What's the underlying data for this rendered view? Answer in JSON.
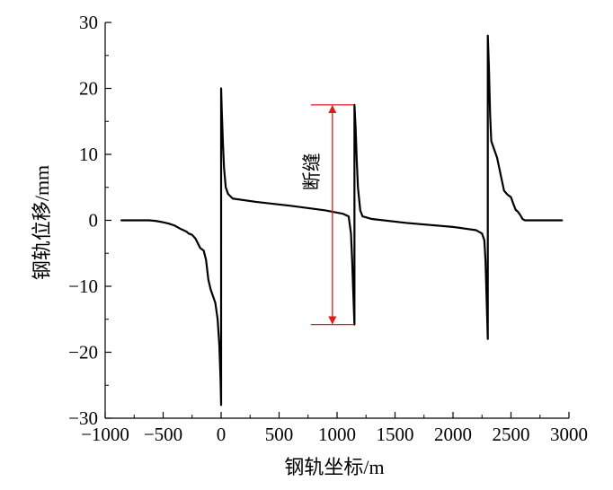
{
  "chart_data": {
    "type": "line",
    "xlabel": "钢轨坐标/m",
    "ylabel": "钢轨位移/mm",
    "xlim": [
      -1000,
      3000
    ],
    "ylim": [
      -30,
      30
    ],
    "x_ticks": [
      -1000,
      -500,
      0,
      500,
      1000,
      1500,
      2000,
      2500,
      3000
    ],
    "x_tick_labels": [
      "−1000",
      "−500",
      "0",
      "500",
      "1000",
      "1500",
      "2000",
      "2500",
      "3000"
    ],
    "y_ticks": [
      -30,
      -20,
      -10,
      0,
      10,
      20,
      30
    ],
    "y_tick_labels": [
      "−30",
      "−20",
      "−10",
      "0",
      "10",
      "20",
      "30"
    ],
    "grid": false,
    "line_color": "#000000",
    "series": [
      {
        "values": [
          [
            -860,
            0
          ],
          [
            -620,
            0
          ],
          [
            -560,
            -0.1
          ],
          [
            -500,
            -0.3
          ],
          [
            -450,
            -0.5
          ],
          [
            -400,
            -0.8
          ],
          [
            -350,
            -1.3
          ],
          [
            -300,
            -1.7
          ],
          [
            -280,
            -2.0
          ],
          [
            -250,
            -2.2
          ],
          [
            -220,
            -2.8
          ],
          [
            -200,
            -3.5
          ],
          [
            -180,
            -4.2
          ],
          [
            -150,
            -4.6
          ],
          [
            -130,
            -6.0
          ],
          [
            -110,
            -9.0
          ],
          [
            -90,
            -10.5
          ],
          [
            -70,
            -11.5
          ],
          [
            -50,
            -12.5
          ],
          [
            -30,
            -15.0
          ],
          [
            -15,
            -19.0
          ],
          [
            -5,
            -24.0
          ],
          [
            0,
            -28.0
          ],
          [
            0,
            20.0
          ],
          [
            5,
            17.0
          ],
          [
            15,
            12.0
          ],
          [
            25,
            8.0
          ],
          [
            40,
            5.0
          ],
          [
            60,
            4.0
          ],
          [
            100,
            3.3
          ],
          [
            300,
            2.8
          ],
          [
            600,
            2.2
          ],
          [
            900,
            1.5
          ],
          [
            1050,
            1.0
          ],
          [
            1100,
            0.6
          ],
          [
            1120,
            -2.0
          ],
          [
            1130,
            -6.0
          ],
          [
            1140,
            -11.0
          ],
          [
            1150,
            -15.8
          ],
          [
            1150,
            17.5
          ],
          [
            1160,
            14.0
          ],
          [
            1170,
            9.0
          ],
          [
            1180,
            5.0
          ],
          [
            1200,
            1.5
          ],
          [
            1220,
            0.6
          ],
          [
            1300,
            0.2
          ],
          [
            1600,
            -0.4
          ],
          [
            2000,
            -1.0
          ],
          [
            2200,
            -1.5
          ],
          [
            2250,
            -2.0
          ],
          [
            2270,
            -3.0
          ],
          [
            2280,
            -6.0
          ],
          [
            2290,
            -12.0
          ],
          [
            2300,
            -18.0
          ],
          [
            2300,
            28.0
          ],
          [
            2310,
            23.0
          ],
          [
            2320,
            16.0
          ],
          [
            2330,
            12.0
          ],
          [
            2350,
            11.0
          ],
          [
            2380,
            9.5
          ],
          [
            2410,
            7.0
          ],
          [
            2440,
            4.5
          ],
          [
            2470,
            3.9
          ],
          [
            2500,
            3.5
          ],
          [
            2520,
            2.5
          ],
          [
            2540,
            1.6
          ],
          [
            2560,
            1.3
          ],
          [
            2580,
            0.8
          ],
          [
            2600,
            0.2
          ],
          [
            2620,
            0
          ],
          [
            2940,
            0
          ]
        ]
      }
    ],
    "annotations": [
      {
        "text": "断缝",
        "x": 960,
        "y_from": -15.8,
        "y_to": 17.5,
        "color": "#e11919"
      }
    ]
  }
}
